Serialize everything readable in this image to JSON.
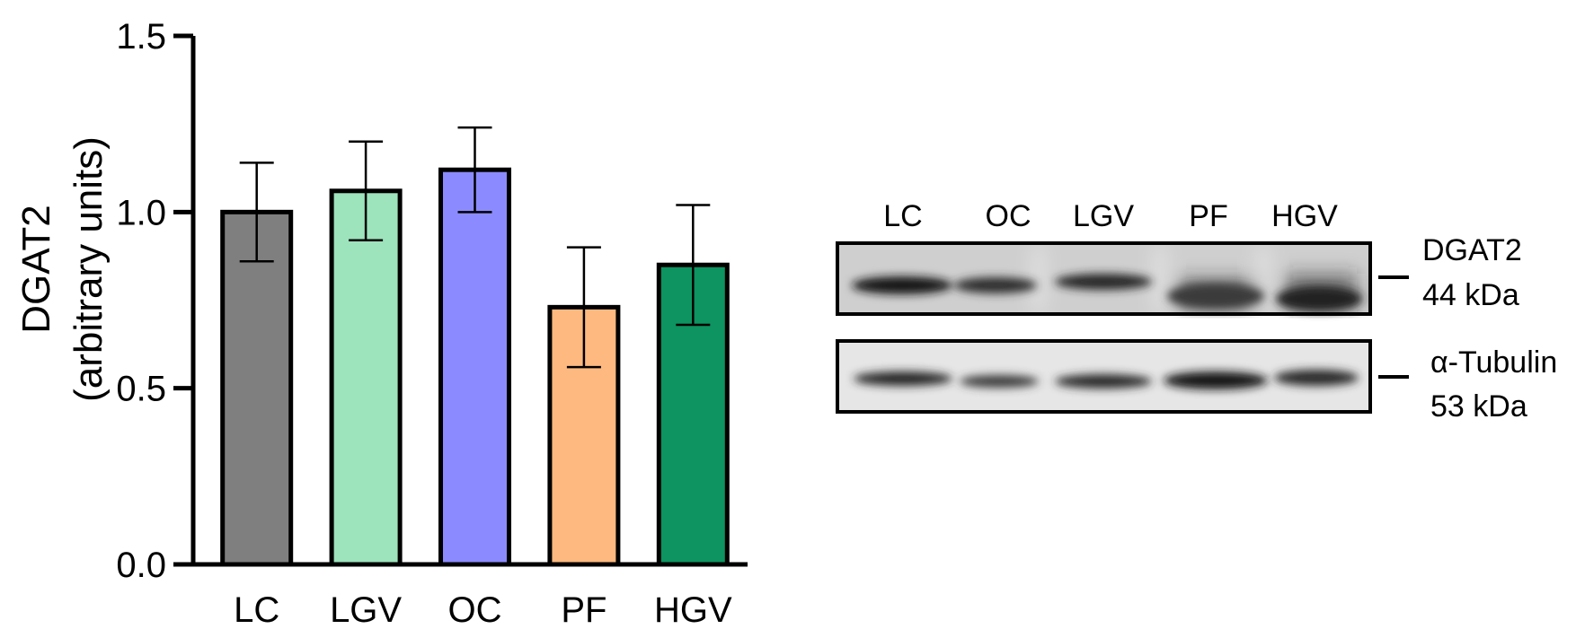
{
  "chart_data": {
    "type": "bar",
    "title": "",
    "xlabel": "",
    "ylabel": "DGAT2",
    "ylabel_sub": "(arbitrary units)",
    "ylim": [
      0,
      1.5
    ],
    "yticks": [
      "0.0",
      "0.5",
      "1.0",
      "1.5"
    ],
    "ytick_values": [
      0,
      0.5,
      1.0,
      1.5
    ],
    "grid": false,
    "categories": [
      "LC",
      "LGV",
      "OC",
      "PF",
      "HGV"
    ],
    "values": [
      1.0,
      1.06,
      1.12,
      0.73,
      0.85
    ],
    "error_upper": [
      1.14,
      1.2,
      1.24,
      0.9,
      1.02
    ],
    "error_lower": [
      0.86,
      0.92,
      1.0,
      0.56,
      0.68
    ],
    "colors": [
      "#7f7f7f",
      "#9de3bc",
      "#8b8bff",
      "#fdb97f",
      "#0d9460"
    ]
  },
  "blot": {
    "lanes": [
      "LC",
      "OC",
      "LGV",
      "PF",
      "HGV"
    ],
    "dgat2_label": "DGAT2",
    "dgat2_size": "44 kDa",
    "tubulin_label": "α-Tubulin",
    "tubulin_size": "53 kDa"
  }
}
